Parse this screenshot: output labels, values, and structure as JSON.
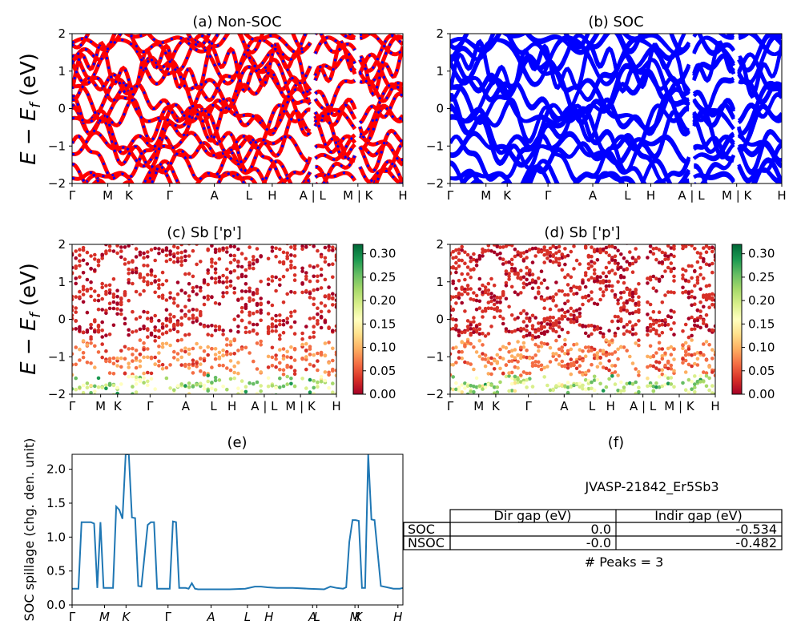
{
  "ylabel_energy": "E − E",
  "ylabel_energy_sub": "f",
  "ylabel_energy_unit": " (eV)",
  "kpath_a": [
    "Γ",
    "M",
    "K",
    "Γ",
    "A",
    "L",
    "H",
    "A | L",
    "M | K",
    "H"
  ],
  "kpath_e": [
    "Γ",
    "M",
    "K",
    "Γ",
    "A",
    "L",
    "H",
    "A",
    "L",
    "M",
    "K",
    "H"
  ],
  "panels": {
    "a": {
      "title": "(a) Non-SOC"
    },
    "b": {
      "title": "(b) SOC"
    },
    "c": {
      "title": "(c)  Sb ['p']"
    },
    "d": {
      "title": "(d) Sb ['p']"
    },
    "e": {
      "title": "(e)",
      "ylabel": "SOC spillage (chg. den. unit)"
    },
    "f": {
      "title": "(f)"
    }
  },
  "colorbar": {
    "ticks": [
      "0.00",
      "0.05",
      "0.10",
      "0.15",
      "0.20",
      "0.25",
      "0.30"
    ],
    "min": 0.0,
    "max": 0.32,
    "colormap": "RdYlGn"
  },
  "info": {
    "material": "JVASP-21842_Er5Sb3",
    "col_headers": [
      "Dir gap (eV)",
      "Indir gap (eV)"
    ],
    "rows": [
      {
        "label": "SOC",
        "dir": "0.0",
        "indir": "-0.534"
      },
      {
        "label": "NSOC",
        "dir": "-0.0",
        "indir": "-0.482"
      }
    ],
    "peaks": "# Peaks = 3"
  },
  "chart_data": [
    {
      "type": "line",
      "panel": "a",
      "title": "(a) Non-SOC",
      "ylim": [
        -2,
        2
      ],
      "yticks": [
        -2,
        -1,
        0,
        1,
        2
      ],
      "x_ticks": [
        "Γ",
        "M",
        "K",
        "Γ",
        "A",
        "L",
        "H",
        "A | L",
        "M | K",
        "H"
      ],
      "colors": [
        "#ff0000",
        "#0000ff"
      ],
      "style": "dashed overlay"
    },
    {
      "type": "line",
      "panel": "b",
      "title": "(b) SOC",
      "ylim": [
        -2,
        2
      ],
      "yticks": [
        -2,
        -1,
        0,
        1,
        2
      ],
      "x_ticks": [
        "Γ",
        "M",
        "K",
        "Γ",
        "A",
        "L",
        "H",
        "A | L",
        "M | K",
        "H"
      ],
      "colors": [
        "#0000ff"
      ]
    },
    {
      "type": "scatter",
      "panel": "c",
      "title": "(c)  Sb ['p']",
      "ylim": [
        -2,
        2
      ],
      "yticks": [
        -2,
        -1,
        0,
        1,
        2
      ],
      "x_ticks": [
        "Γ",
        "M",
        "K",
        "Γ",
        "A",
        "L",
        "H",
        "A | L",
        "M | K",
        "H"
      ],
      "colorbar_range": [
        0.0,
        0.32
      ]
    },
    {
      "type": "scatter",
      "panel": "d",
      "title": "(d) Sb ['p']",
      "ylim": [
        -2,
        2
      ],
      "yticks": [
        -2,
        -1,
        0,
        1,
        2
      ],
      "x_ticks": [
        "Γ",
        "M",
        "K",
        "Γ",
        "A",
        "L",
        "H",
        "A | L",
        "M | K",
        "H"
      ],
      "colorbar_range": [
        0.0,
        0.32
      ]
    },
    {
      "type": "line",
      "panel": "e",
      "title": "(e)",
      "ylabel": "SOC spillage (chg. den. unit)",
      "ylim": [
        0.0,
        2.22
      ],
      "yticks": [
        0.0,
        0.5,
        1.0,
        1.5,
        2.0
      ],
      "x": [
        0,
        2,
        3,
        6,
        7,
        8,
        9,
        10,
        11,
        13,
        14,
        15,
        16,
        17,
        18,
        19,
        20,
        21,
        22,
        24,
        25,
        26,
        27,
        28,
        30,
        31,
        32,
        33,
        34,
        36,
        37,
        38,
        39,
        40,
        42,
        45,
        50,
        55,
        58,
        60,
        62,
        65,
        70,
        75,
        80,
        82,
        84,
        86,
        87,
        88,
        89,
        90,
        91,
        92,
        93,
        94,
        95,
        96,
        98,
        100,
        102,
        104,
        105
      ],
      "y": [
        0.24,
        0.24,
        1.22,
        1.22,
        1.2,
        0.25,
        1.22,
        0.25,
        0.25,
        0.25,
        1.45,
        1.4,
        1.27,
        2.22,
        2.22,
        1.29,
        1.28,
        0.28,
        0.27,
        1.18,
        1.22,
        1.22,
        0.24,
        0.24,
        0.24,
        0.24,
        1.23,
        1.22,
        0.25,
        0.25,
        0.24,
        0.32,
        0.24,
        0.23,
        0.23,
        0.23,
        0.23,
        0.24,
        0.27,
        0.27,
        0.26,
        0.25,
        0.25,
        0.24,
        0.23,
        0.27,
        0.25,
        0.24,
        0.26,
        0.93,
        1.25,
        1.25,
        1.24,
        0.25,
        0.25,
        2.22,
        1.26,
        1.25,
        0.28,
        0.26,
        0.24,
        0.24,
        0.25
      ],
      "x_ticks": [
        "Γ",
        "M",
        "K",
        "Γ",
        "A",
        "L",
        "H",
        "A",
        "L",
        "M",
        "K",
        "H"
      ],
      "color": "#1f77b4"
    }
  ]
}
